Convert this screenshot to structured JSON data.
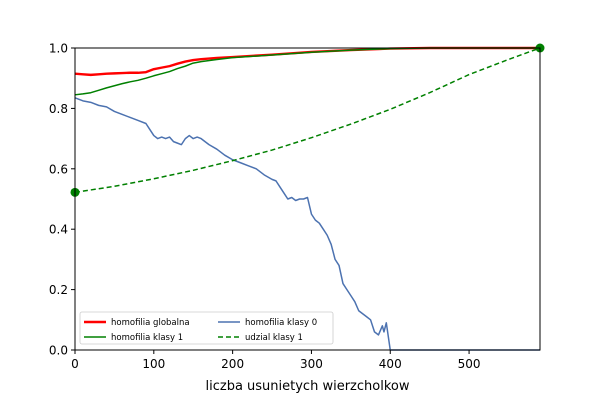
{
  "chart_data": {
    "type": "line",
    "xlabel": "liczba usunietych wierzcholkow",
    "ylabel": "",
    "xlim": [
      0,
      590
    ],
    "ylim": [
      0,
      1.0
    ],
    "xticks": [
      0,
      100,
      200,
      300,
      400,
      500
    ],
    "yticks": [
      0.0,
      0.2,
      0.4,
      0.6,
      0.8,
      1.0
    ],
    "grid": false,
    "legend_position": "bottom-left",
    "legend": [
      {
        "label": "homofilia globalna",
        "color": "#ff0000",
        "style": "solid"
      },
      {
        "label": "homofilia klasy 1",
        "color": "#008000",
        "style": "solid"
      },
      {
        "label": "homofilia klasy 0",
        "color": "#4c72b0",
        "style": "solid"
      },
      {
        "label": "udzial klasy 1",
        "color": "#008000",
        "style": "dashed"
      }
    ],
    "series": [
      {
        "name": "homofilia globalna",
        "color": "#ff0000",
        "style": "solid",
        "x": [
          0,
          10,
          20,
          30,
          40,
          50,
          60,
          70,
          80,
          90,
          100,
          110,
          120,
          130,
          140,
          150,
          160,
          180,
          200,
          250,
          300,
          350,
          400,
          450,
          500,
          550,
          590
        ],
        "y": [
          0.915,
          0.913,
          0.911,
          0.913,
          0.915,
          0.916,
          0.917,
          0.918,
          0.918,
          0.92,
          0.93,
          0.935,
          0.94,
          0.948,
          0.955,
          0.96,
          0.963,
          0.967,
          0.97,
          0.978,
          0.987,
          0.993,
          0.998,
          1.0,
          1.0,
          1.0,
          1.0
        ]
      },
      {
        "name": "homofilia klasy 1",
        "color": "#008000",
        "style": "solid",
        "x": [
          0,
          10,
          20,
          30,
          40,
          50,
          60,
          70,
          80,
          90,
          100,
          110,
          120,
          130,
          140,
          150,
          160,
          180,
          200,
          250,
          300,
          350,
          400,
          450,
          500,
          550,
          590
        ],
        "y": [
          0.845,
          0.848,
          0.852,
          0.86,
          0.868,
          0.875,
          0.882,
          0.888,
          0.893,
          0.9,
          0.908,
          0.915,
          0.922,
          0.932,
          0.94,
          0.95,
          0.955,
          0.962,
          0.968,
          0.977,
          0.986,
          0.993,
          0.998,
          1.0,
          1.0,
          1.0,
          1.0
        ]
      },
      {
        "name": "homofilia klasy 0",
        "color": "#4c72b0",
        "style": "solid",
        "x": [
          0,
          10,
          20,
          30,
          40,
          50,
          60,
          70,
          80,
          90,
          95,
          100,
          105,
          110,
          115,
          120,
          125,
          130,
          135,
          140,
          145,
          150,
          155,
          160,
          165,
          170,
          180,
          190,
          200,
          210,
          220,
          230,
          240,
          250,
          255,
          260,
          265,
          270,
          275,
          280,
          285,
          290,
          295,
          300,
          305,
          310,
          315,
          320,
          325,
          330,
          335,
          340,
          345,
          350,
          355,
          360,
          365,
          370,
          375,
          380,
          385,
          390,
          392,
          395,
          400,
          450,
          500,
          550,
          590
        ],
        "y": [
          0.835,
          0.825,
          0.82,
          0.81,
          0.805,
          0.79,
          0.78,
          0.77,
          0.76,
          0.75,
          0.73,
          0.71,
          0.7,
          0.705,
          0.7,
          0.705,
          0.69,
          0.685,
          0.68,
          0.7,
          0.71,
          0.7,
          0.705,
          0.7,
          0.69,
          0.68,
          0.665,
          0.645,
          0.63,
          0.62,
          0.61,
          0.6,
          0.58,
          0.565,
          0.56,
          0.54,
          0.52,
          0.5,
          0.505,
          0.495,
          0.5,
          0.5,
          0.505,
          0.45,
          0.43,
          0.42,
          0.4,
          0.38,
          0.35,
          0.3,
          0.28,
          0.22,
          0.2,
          0.18,
          0.16,
          0.13,
          0.12,
          0.11,
          0.1,
          0.06,
          0.05,
          0.08,
          0.06,
          0.09,
          0.0,
          0.0,
          0.0,
          0.0,
          0.0
        ]
      },
      {
        "name": "udzial klasy 1",
        "color": "#008000",
        "style": "dashed",
        "x": [
          0,
          50,
          100,
          150,
          200,
          250,
          300,
          350,
          400,
          450,
          500,
          550,
          590
        ],
        "y": [
          0.522,
          0.542,
          0.567,
          0.595,
          0.627,
          0.662,
          0.703,
          0.748,
          0.797,
          0.852,
          0.912,
          0.962,
          1.0
        ]
      }
    ],
    "markers": [
      {
        "x": 0,
        "y": 0.522,
        "color": "#008000"
      },
      {
        "x": 590,
        "y": 1.0,
        "color": "#008000"
      }
    ]
  }
}
